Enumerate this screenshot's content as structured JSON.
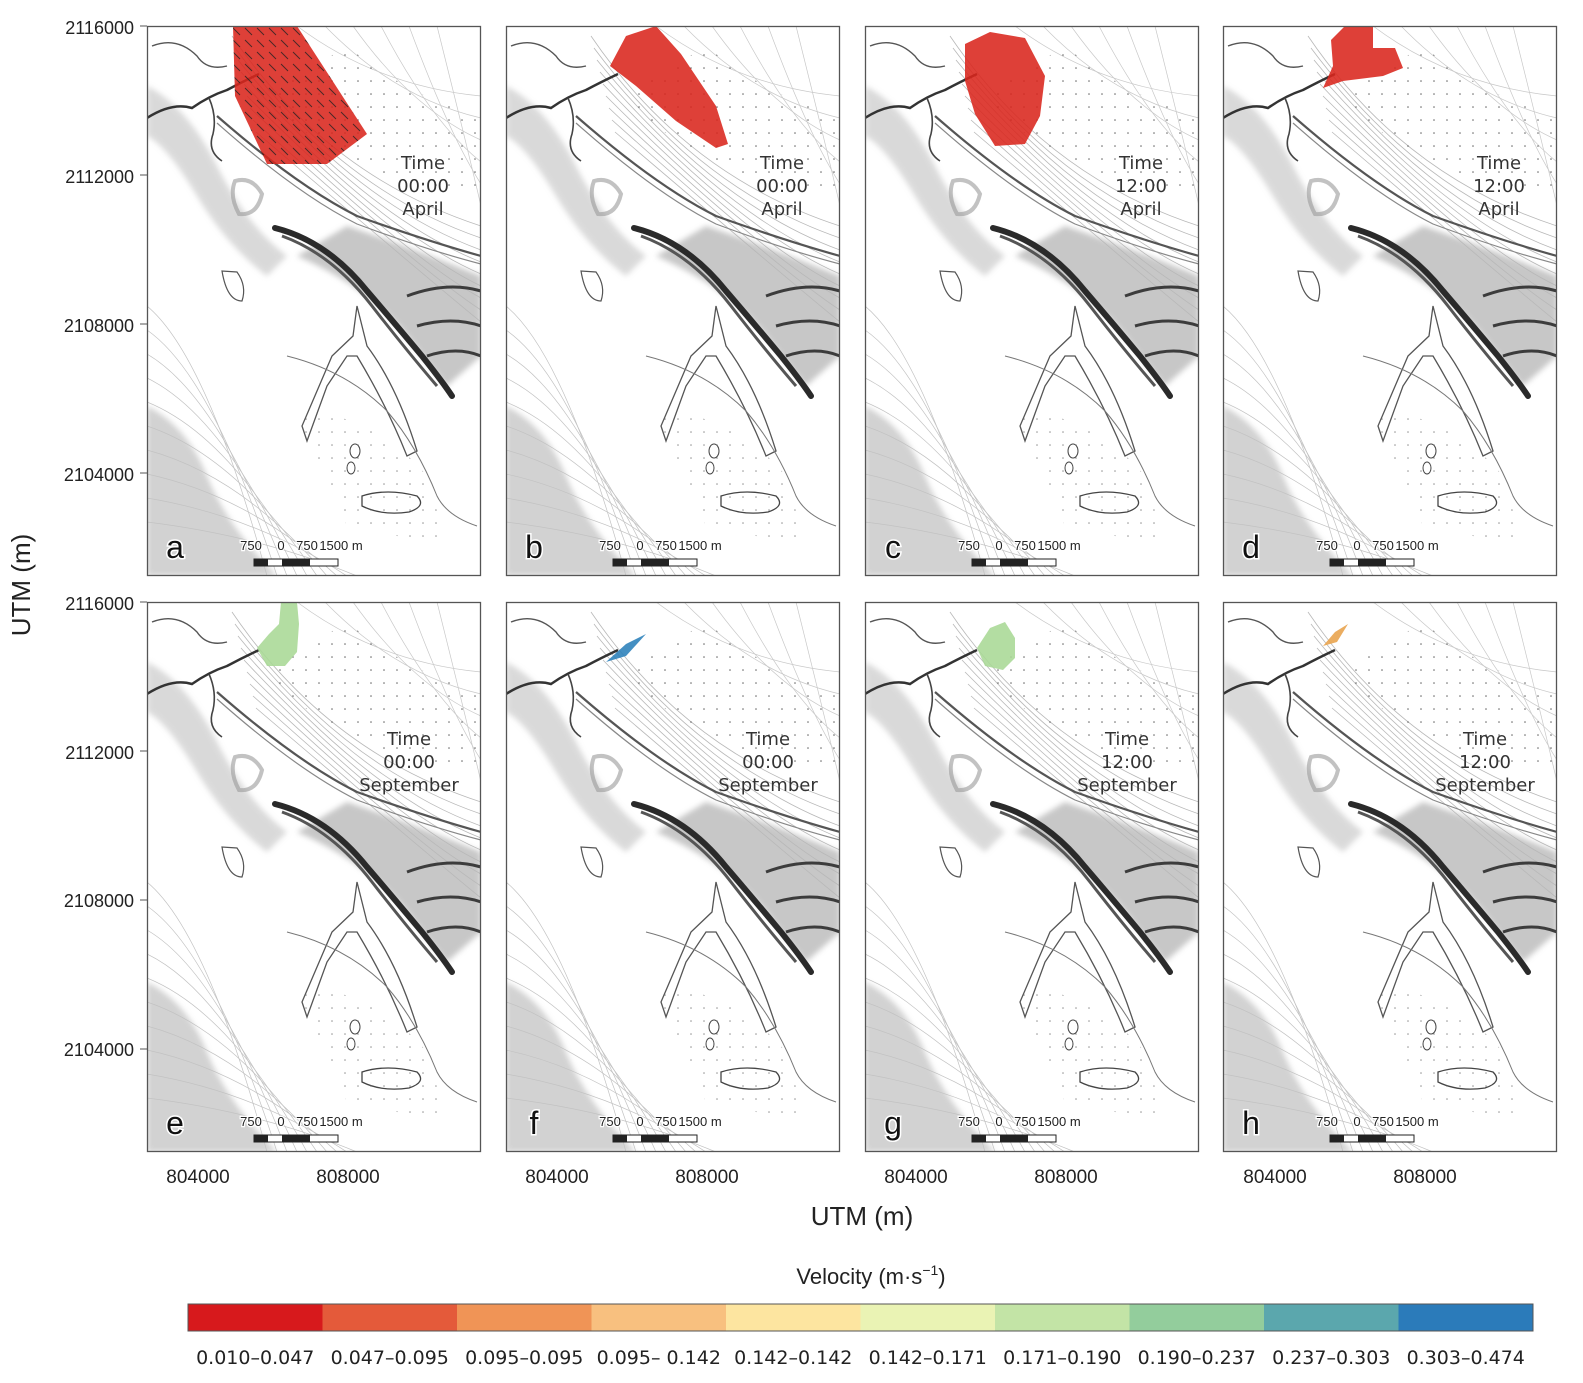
{
  "y_axis": {
    "label": "UTM (m)",
    "ticks": [
      "2116000",
      "2112000",
      "2108000",
      "2104000"
    ]
  },
  "x_axis": {
    "label": "UTM (m)",
    "ticks": [
      "804000",
      "808000"
    ]
  },
  "time_label": "Time",
  "panels": [
    {
      "letter": "a",
      "time": "00:00",
      "month": "April",
      "plume_color": "#d9261c"
    },
    {
      "letter": "b",
      "time": "00:00",
      "month": "April",
      "plume_color": "#d9261c"
    },
    {
      "letter": "c",
      "time": "12:00",
      "month": "April",
      "plume_color": "#d9261c"
    },
    {
      "letter": "d",
      "time": "12:00",
      "month": "April",
      "plume_color": "#d9261c"
    },
    {
      "letter": "e",
      "time": "00:00",
      "month": "September",
      "plume_color": "#a8d895"
    },
    {
      "letter": "f",
      "time": "00:00",
      "month": "September",
      "plume_color": "#2a7fba"
    },
    {
      "letter": "g",
      "time": "12:00",
      "month": "September",
      "plume_color": "#a8d895"
    },
    {
      "letter": "h",
      "time": "12:00",
      "month": "September",
      "plume_color": "#e8a24a"
    }
  ],
  "scale_bar": {
    "labels": [
      "750",
      "0",
      "750",
      "1500 m"
    ]
  },
  "legend": {
    "title": "Velocity (m·s",
    "title_sup": "−1",
    "title_end": ")",
    "bins": [
      {
        "label": "0.010–0.047",
        "color": "#d7191c"
      },
      {
        "label": "0.047–0.095",
        "color": "#e45a3a"
      },
      {
        "label": "0.095–0.095",
        "color": "#f09456"
      },
      {
        "label": "0.095– 0.142",
        "color": "#f8c07f"
      },
      {
        "label": "0.142–0.142",
        "color": "#fde5a0"
      },
      {
        "label": "0.142–0.171",
        "color": "#eaf3b4"
      },
      {
        "label": "0.171–0.190",
        "color": "#c3e4a6"
      },
      {
        "label": "0.190–0.237",
        "color": "#93cd9c"
      },
      {
        "label": "0.237–0.303",
        "color": "#5ba7ad"
      },
      {
        "label": "0.303–0.474",
        "color": "#2b7bba"
      }
    ]
  }
}
